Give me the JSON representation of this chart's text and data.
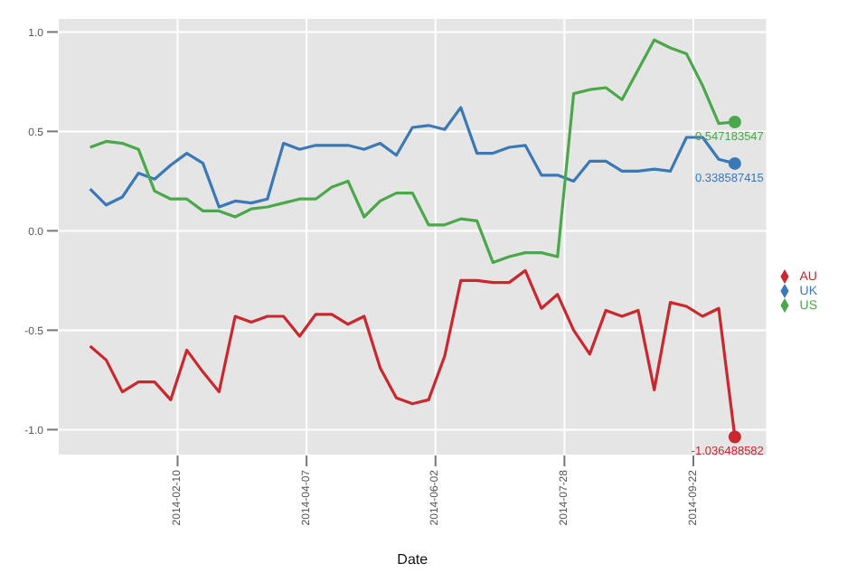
{
  "chart_data": {
    "type": "line",
    "xlabel": "Date",
    "x": [
      "2014-01-03",
      "2014-01-10",
      "2014-01-17",
      "2014-01-24",
      "2014-01-31",
      "2014-02-07",
      "2014-02-14",
      "2014-02-21",
      "2014-02-28",
      "2014-03-07",
      "2014-03-14",
      "2014-03-21",
      "2014-03-28",
      "2014-04-04",
      "2014-04-11",
      "2014-04-18",
      "2014-04-25",
      "2014-05-02",
      "2014-05-09",
      "2014-05-16",
      "2014-05-23",
      "2014-05-30",
      "2014-06-06",
      "2014-06-13",
      "2014-06-20",
      "2014-06-27",
      "2014-07-04",
      "2014-07-11",
      "2014-07-18",
      "2014-07-25",
      "2014-08-01",
      "2014-08-08",
      "2014-08-15",
      "2014-08-22",
      "2014-08-29",
      "2014-09-05",
      "2014-09-12",
      "2014-09-19",
      "2014-09-26",
      "2014-10-03",
      "2014-10-10"
    ],
    "series": [
      {
        "name": "AU",
        "color": "#c9282f",
        "values": [
          -0.58,
          -0.65,
          -0.81,
          -0.76,
          -0.76,
          -0.85,
          -0.6,
          -0.71,
          -0.81,
          -0.43,
          -0.46,
          -0.43,
          -0.43,
          -0.53,
          -0.42,
          -0.42,
          -0.47,
          -0.43,
          -0.69,
          -0.84,
          -0.87,
          -0.85,
          -0.63,
          -0.25,
          -0.25,
          -0.26,
          -0.26,
          -0.2,
          -0.39,
          -0.32,
          -0.5,
          -0.62,
          -0.4,
          -0.43,
          -0.4,
          -0.8,
          -0.36,
          -0.38,
          -0.43,
          -0.39,
          -1.036488582
        ]
      },
      {
        "name": "UK",
        "color": "#3b79b6",
        "values": [
          0.21,
          0.13,
          0.17,
          0.29,
          0.26,
          0.33,
          0.39,
          0.34,
          0.12,
          0.15,
          0.14,
          0.16,
          0.44,
          0.41,
          0.43,
          0.43,
          0.43,
          0.41,
          0.44,
          0.38,
          0.52,
          0.53,
          0.51,
          0.62,
          0.39,
          0.39,
          0.42,
          0.43,
          0.28,
          0.28,
          0.25,
          0.35,
          0.35,
          0.3,
          0.3,
          0.31,
          0.3,
          0.47,
          0.47,
          0.36,
          0.338587415
        ]
      },
      {
        "name": "US",
        "color": "#4aa84a",
        "values": [
          0.42,
          0.45,
          0.44,
          0.41,
          0.2,
          0.16,
          0.16,
          0.1,
          0.1,
          0.07,
          0.11,
          0.12,
          0.14,
          0.16,
          0.16,
          0.22,
          0.25,
          0.07,
          0.15,
          0.19,
          0.19,
          0.03,
          0.03,
          0.06,
          0.05,
          -0.16,
          -0.13,
          -0.11,
          -0.11,
          -0.13,
          0.69,
          0.71,
          0.72,
          0.66,
          0.81,
          0.96,
          0.92,
          0.89,
          0.73,
          0.54,
          0.547183547
        ]
      }
    ],
    "annotations": [
      {
        "text": "0.547183547",
        "x": "2014-10-10",
        "y": 0.547183547
      },
      {
        "text": "0.338587415",
        "x": "2014-10-10",
        "y": 0.338587415
      },
      {
        "text": "-1.036488582",
        "x": "2014-10-10",
        "y": -1.036488582
      }
    ],
    "xlim": [
      "2013-12-20",
      "2014-10-24"
    ],
    "xticks": [
      "2014-02-10",
      "2014-04-07",
      "2014-06-02",
      "2014-07-28",
      "2014-09-22"
    ],
    "ylim": [
      -1.13,
      1.07
    ],
    "yticks": [
      {
        "value": -1,
        "label": "-1.0"
      },
      {
        "value": -0.5,
        "label": "-0.5"
      },
      {
        "value": 0,
        "label": "0.0"
      },
      {
        "value": 0.5,
        "label": "0.5"
      },
      {
        "value": 1,
        "label": "1.0"
      }
    ],
    "grid": true,
    "legend": "right",
    "marker": "none",
    "line_style": "solid"
  }
}
